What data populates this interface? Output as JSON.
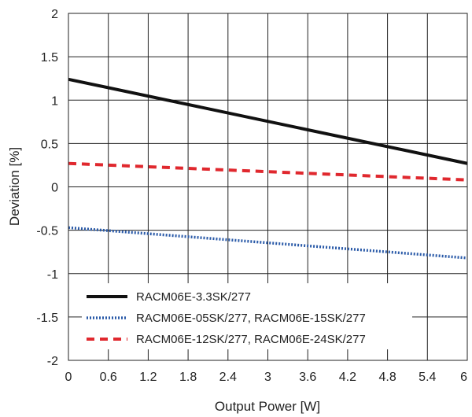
{
  "chart_data": {
    "type": "line",
    "title": "",
    "xlabel": "Output Power [W]",
    "ylabel": "Deviation [%]",
    "xlim": [
      0,
      6
    ],
    "ylim": [
      -2,
      2
    ],
    "x_ticks": [
      0,
      0.6,
      1.2,
      1.8,
      2.4,
      3,
      3.6,
      4.2,
      4.8,
      5.4,
      6
    ],
    "x_tick_labels": [
      "0",
      "0.6",
      "1.2",
      "1.8",
      "2.4",
      "3",
      "3.6",
      "4.2",
      "4.8",
      "5.4",
      "6"
    ],
    "y_ticks": [
      2,
      1.5,
      1,
      0.5,
      0,
      -0.5,
      -1,
      -1.5,
      -2
    ],
    "y_tick_labels": [
      "2",
      "1.5",
      "1",
      "0.5",
      "0",
      "-0.5",
      "-1",
      "-1.5",
      "-2"
    ],
    "grid": true,
    "legend_position": "bottom-left",
    "series": [
      {
        "name": "RACM06E-3.3SK/277",
        "color": "#111111",
        "style": "solid",
        "x": [
          0,
          6
        ],
        "y": [
          1.24,
          0.27
        ]
      },
      {
        "name": "RACM06E-05SK/277, RACM06E-15SK/277",
        "color": "#2a5aa8",
        "style": "dotted",
        "x": [
          0,
          6
        ],
        "y": [
          -0.47,
          -0.82
        ]
      },
      {
        "name": "RACM06E-12SK/277, RACM06E-24SK/277",
        "color": "#e0282e",
        "style": "dashed",
        "x": [
          0,
          6
        ],
        "y": [
          0.27,
          0.08
        ]
      }
    ]
  }
}
